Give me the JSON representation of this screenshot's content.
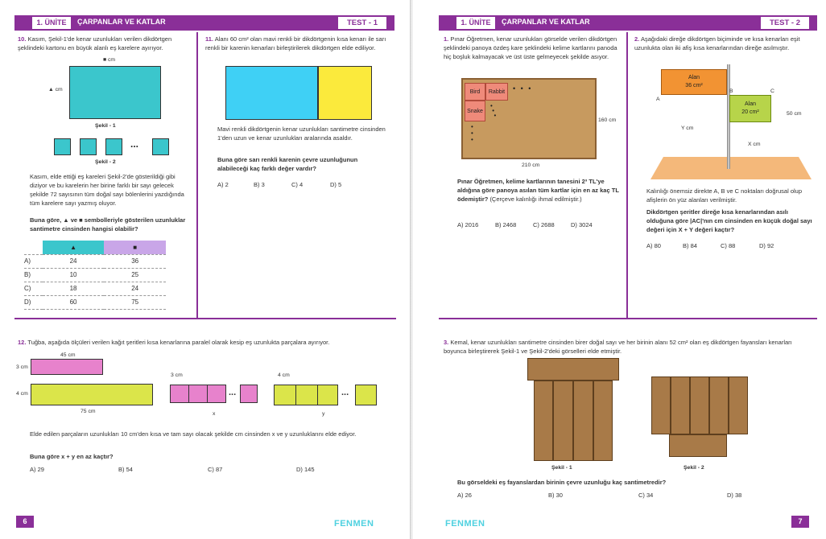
{
  "left": {
    "header": {
      "unit": "1. ÜNİTE",
      "title": "ÇARPANLAR VE KATLAR",
      "test": "TEST - 1"
    },
    "q10": {
      "num": "10.",
      "text": "Kasım, Şekil-1'de kenar uzunlukları verilen dikdörtgen şeklindeki kartonu en büyük alanlı eş karelere ayırıyor.",
      "top_label": "■ cm",
      "side_label": "▲ cm",
      "fig1": "Şekil - 1",
      "fig2": "Şekil - 2",
      "dots": "...",
      "para": "Kasım, elde ettiği eş kareleri Şekil-2'de gösterildiği gibi diziyor ve bu karelerin her birine farklı bir sayı gelecek şekilde 72 sayısının tüm doğal sayı bölenlerini yazdığında tüm karelere sayı yazmış oluyor.",
      "ask": "Buna göre, ▲ ve ■ sembolleriyle gösterilen uzunluklar santimetre cinsinden hangisi olabilir?",
      "col1": "▲",
      "col2": "■",
      "rows": [
        [
          "A)",
          "24",
          "36"
        ],
        [
          "B)",
          "10",
          "25"
        ],
        [
          "C)",
          "18",
          "24"
        ],
        [
          "D)",
          "60",
          "75"
        ]
      ]
    },
    "q11": {
      "num": "11.",
      "text": "Alanı 60 cm² olan mavi renkli bir dikdörtgenin kısa kenarı ile sarı renkli bir karenin kenarları birleştirilerek dikdörtgen elde ediliyor.",
      "para": "Mavi renkli dikdörtgenin kenar uzunlukları santimetre cinsinden 1'den uzun ve kenar uzunlukları aralarında asaldır.",
      "ask": "Buna göre sarı renkli karenin çevre uzunluğunun alabileceği kaç farklı değer vardır?",
      "opts": [
        "A) 2",
        "B) 3",
        "C) 4",
        "D) 5"
      ]
    },
    "q12": {
      "num": "12.",
      "text": "Tuğba, aşağıda ölçüleri verilen kağıt şeritleri kısa kenarlarına paralel olarak kesip eş uzunlukta parçalara ayırıyor.",
      "l45": "45 cm",
      "l3": "3 cm",
      "l4": "4 cm",
      "l75": "75 cm",
      "s3": "3 cm",
      "s4": "4 cm",
      "x": "x",
      "y": "y",
      "dots": "...",
      "para": "Elde edilen parçaların uzunlukları 10 cm'den kısa ve tam sayı olacak şekilde cm cinsinden x ve y uzunluklarını elde ediyor.",
      "ask": "Buna göre x + y en az kaçtır?",
      "opts": [
        "A) 29",
        "B) 54",
        "C) 87",
        "D) 145"
      ]
    },
    "page": "6",
    "brand": "FENMEN"
  },
  "right": {
    "header": {
      "unit": "1. ÜNİTE",
      "title": "ÇARPANLAR VE KATLAR",
      "test": "TEST - 2"
    },
    "q1": {
      "num": "1.",
      "text": "Pınar Öğretmen, kenar uzunlukları görselde verilen dikdörtgen şeklindeki panoya özdeş kare şeklindeki kelime kartlarını panoda hiç boşluk kalmayacak ve üst üste gelmeyecek şekilde asıyor.",
      "cards": [
        "Bird",
        "Rabbit",
        "Snake"
      ],
      "h": "160 cm",
      "w": "210 cm",
      "ask": "Pınar Öğretmen, kelime kartlarının tanesini 2³ TL'ye aldığına göre panoya asılan tüm kartlar için en az kaç TL ödemiştir?",
      "note": "(Çerçeve kalınlığı ihmal edilmiştir.)",
      "opts": [
        "A) 2016",
        "B) 2468",
        "C) 2688",
        "D) 3024"
      ]
    },
    "q2": {
      "num": "2.",
      "text": "Aşağıdaki direğe dikdörtgen biçiminde ve kısa kenarları eşit uzunlukta olan iki afiş kısa kenarlarından direğe asılmıştır.",
      "alan1": "Alan",
      "alan1v": "36 cm²",
      "alan2": "Alan",
      "alan2v": "20 cm²",
      "A": "A",
      "B": "B",
      "C": "C",
      "ycm": "Y cm",
      "xcm": "X cm",
      "h50": "50 cm",
      "para": "Kalınlığı önemsiz direkte A, B ve C noktaları doğrusal olup afişlerin ön yüz alanları verilmiştir.",
      "ask": "Dikdörtgen şeritler direğe kısa kenarlarından asılı olduğuna göre |AC|'nın cm cinsinden en küçük doğal sayı değeri için X + Y değeri kaçtır?",
      "opts": [
        "A) 80",
        "B) 84",
        "C) 88",
        "D) 92"
      ]
    },
    "q3": {
      "num": "3.",
      "text": "Kemal, kenar uzunlukları santimetre cinsinden birer doğal sayı ve her birinin alanı 52 cm² olan eş dikdörtgen fayansları kenarları boyunca birleştirerek Şekil-1 ve Şekil-2'deki görselleri elde etmiştir.",
      "fig1": "Şekil - 1",
      "fig2": "Şekil - 2",
      "ask": "Bu görseldeki eş fayanslardan birinin çevre uzunluğu kaç santimetredir?",
      "opts": [
        "A) 26",
        "B) 30",
        "C) 34",
        "D) 38"
      ]
    },
    "page": "7",
    "brand": "FENMEN"
  },
  "colors": {
    "accent": "#8a2f98",
    "blue": "#3fd0f5",
    "yellow": "#fbea3c",
    "pink": "#e782cc",
    "lime": "#dbe54a",
    "teal": "#3bc6cc",
    "cork": "#c79a5f",
    "tile": "#a87a48",
    "orange": "#f29333",
    "green": "#b7d44a"
  }
}
